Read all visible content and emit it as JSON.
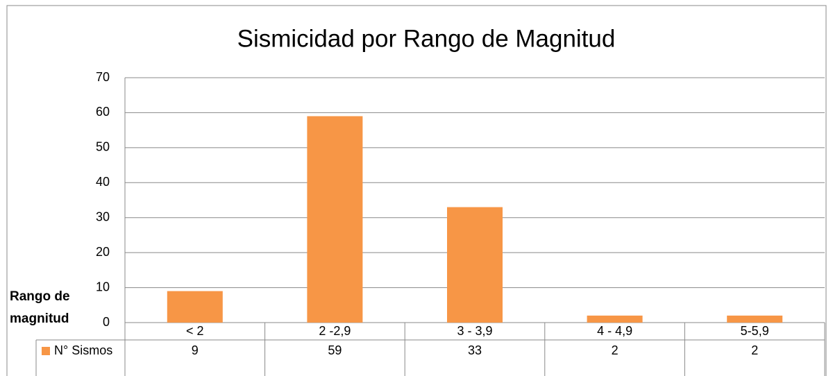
{
  "chart_data": {
    "type": "bar",
    "title": "Sismicidad por Rango de Magnitud",
    "x_label": "Rango de magnitud",
    "categories": [
      "< 2",
      "2 -2,9",
      "3 - 3,9",
      "4 - 4,9",
      "5-5,9"
    ],
    "series": [
      {
        "name": "N° Sismos",
        "color": "#f79646",
        "values": [
          9,
          59,
          33,
          2,
          2
        ]
      }
    ],
    "ylim": [
      0,
      70
    ],
    "yticks": [
      0,
      10,
      20,
      30,
      40,
      50,
      60,
      70
    ],
    "grid": true,
    "data_table": true
  }
}
